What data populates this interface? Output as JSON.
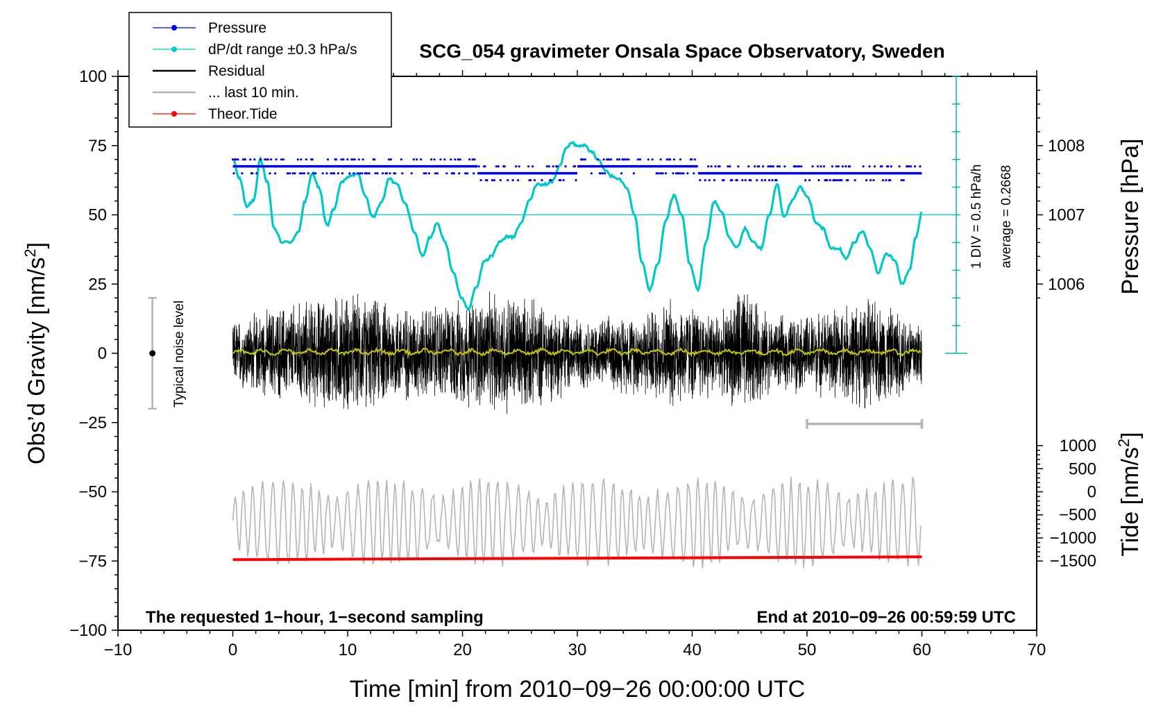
{
  "chart_data": {
    "type": "line",
    "title": "SCG_054 gravimeter Onsala Space Observatory, Sweden",
    "xlabel": "Time [min] from 2010−09−26 00:00:00 UTC",
    "ylabel": "Obs’d Gravity [nm/s²]",
    "ylabel_main": "Obs’d Gravity [nm/s",
    "ylabel_sup": "2",
    "ylabel_end": "]",
    "y2label": "Pressure [hPa]",
    "y3label": "Tide [nm/s²]",
    "y3label_main": "Tide [nm/s",
    "y3label_sup": "2",
    "y3label_end": "]",
    "xlim": [
      -10,
      70
    ],
    "ylim": [
      -100,
      100
    ],
    "x_ticks": [
      -10,
      0,
      10,
      20,
      30,
      40,
      50,
      60,
      70
    ],
    "x_tick_labels": [
      "−10",
      "0",
      "10",
      "20",
      "30",
      "40",
      "50",
      "60",
      "70"
    ],
    "y_ticks": [
      -100,
      -75,
      -50,
      -25,
      0,
      25,
      50,
      75,
      100
    ],
    "y_tick_labels": [
      "−100",
      "−75",
      "−50",
      "−25",
      "0",
      "25",
      "50",
      "75",
      "100"
    ],
    "pressure_axis": {
      "ticks": [
        1006,
        1007,
        1008
      ],
      "tick_labels": [
        "1006",
        "1007",
        "1008"
      ],
      "gravity_at_1007": 50,
      "gravity_per_hPa": 25
    },
    "tide_axis": {
      "ticks": [
        -1500,
        -1000,
        -500,
        0,
        500,
        1000
      ],
      "tick_labels": [
        "−1500",
        "−1000",
        "−500",
        "0",
        "500",
        "1000"
      ],
      "gravity_at_0": -50,
      "gravity_per_500": 8.333
    },
    "legend": [
      {
        "label": "Pressure",
        "color": "#0000ee",
        "marker": true
      },
      {
        "label": "dP/dt range ±0.3 hPa/s",
        "color": "#00c8c8",
        "marker": true
      },
      {
        "label": "Residual",
        "color": "#000000",
        "marker": false
      },
      {
        "label": "... last 10 min.",
        "color": "#b4b4b4",
        "marker": false
      },
      {
        "label": "Theor.Tide",
        "color": "#ff0000",
        "marker": true
      }
    ],
    "annotations": {
      "noise_level": "Typical noise level",
      "noise_range": [
        -20,
        20
      ],
      "noise_x": -7,
      "scale_div": "1 DIV = 0.5 hPa/h",
      "average": "average = 0.2668",
      "bottom_left": "The requested 1−hour, 1−second sampling",
      "bottom_right": "End at 2010−09−26 00:59:59 UTC",
      "last10_bar": {
        "x": [
          50,
          60
        ],
        "y": -25.5
      }
    },
    "series": [
      {
        "name": "dP/dt range ±0.3 hPa/s",
        "color": "#00c8c8",
        "x": [
          0,
          0.6,
          1.2,
          1.8,
          2.4,
          3.0,
          3.6,
          4.3,
          5.0,
          5.7,
          6.3,
          6.9,
          7.5,
          8.2,
          8.8,
          9.5,
          10.2,
          10.9,
          11.5,
          12.2,
          13.0,
          13.6,
          14.3,
          15.0,
          15.8,
          16.5,
          17.2,
          17.8,
          18.5,
          19.2,
          19.9,
          20.5,
          21.2,
          21.9,
          22.5,
          23.2,
          23.8,
          24.4,
          25.1,
          25.8,
          26.5,
          27.2,
          27.8,
          28.5,
          29.0,
          29.5,
          30.0,
          30.6,
          31.2,
          31.8,
          32.4,
          33.0,
          33.6,
          34.3,
          35.0,
          35.6,
          36.3,
          37.0,
          37.7,
          38.4,
          39.1,
          39.8,
          40.5,
          41.2,
          41.9,
          42.6,
          43.2,
          43.9,
          44.6,
          45.3,
          46.0,
          46.7,
          47.4,
          48.0,
          48.7,
          49.4,
          50.1,
          50.8,
          51.4,
          52.1,
          52.8,
          53.4,
          54.1,
          54.8,
          55.5,
          56.2,
          56.9,
          57.6,
          58.3,
          58.9,
          59.5,
          60.0
        ],
        "values": [
          70,
          63,
          53,
          55,
          70,
          62,
          45,
          40,
          40,
          44,
          55,
          65,
          60,
          46,
          52,
          62,
          64,
          65,
          57,
          49,
          55,
          63,
          61,
          54,
          44,
          35,
          42,
          47,
          40,
          29,
          20,
          16,
          24,
          33,
          35,
          40,
          42,
          42,
          47,
          55,
          61,
          61,
          62,
          68,
          74,
          76,
          75,
          75,
          73,
          70,
          66,
          64,
          63,
          60,
          50,
          33,
          23,
          32,
          48,
          57,
          50,
          32,
          23,
          40,
          55,
          51,
          42,
          38,
          45,
          40,
          38,
          50,
          61,
          49,
          55,
          60,
          56,
          47,
          45,
          38,
          38,
          34,
          40,
          44,
          38,
          29,
          36,
          34,
          25,
          30,
          42,
          51
        ]
      },
      {
        "name": "Theor.Tide",
        "color": "#ff0000",
        "x": [
          0,
          60
        ],
        "values": [
          -74.5,
          -73.5
        ]
      },
      {
        "name": "Pressure",
        "color": "#0000ee",
        "lines": [
          {
            "x": [
              0,
              21.3
            ],
            "values": [
              67.5,
              67.5
            ]
          },
          {
            "x": [
              21.3,
              30.0
            ],
            "values": [
              65,
              65
            ]
          },
          {
            "x": [
              30.0,
              40.5
            ],
            "values": [
              67.5,
              67.5
            ]
          },
          {
            "x": [
              40.5,
              60.0
            ],
            "values": [
              65,
              65
            ]
          }
        ]
      },
      {
        "name": "Residual",
        "color": "#000000",
        "x_range": [
          0,
          60
        ],
        "amplitude_envelope": [
          {
            "x": 0,
            "amp": 13
          },
          {
            "x": 4,
            "amp": 19
          },
          {
            "x": 10,
            "amp": 24
          },
          {
            "x": 16,
            "amp": 18
          },
          {
            "x": 21,
            "amp": 22
          },
          {
            "x": 24,
            "amp": 25
          },
          {
            "x": 31,
            "amp": 13
          },
          {
            "x": 36,
            "amp": 17
          },
          {
            "x": 38,
            "amp": 22
          },
          {
            "x": 43,
            "amp": 16
          },
          {
            "x": 44,
            "amp": 28
          },
          {
            "x": 47,
            "amp": 14
          },
          {
            "x": 51,
            "amp": 16
          },
          {
            "x": 55,
            "amp": 22
          },
          {
            "x": 60,
            "amp": 14
          }
        ]
      },
      {
        "name": "... last 10 min.",
        "color": "#b4b4b4",
        "x_range": [
          0,
          60
        ],
        "center": -61,
        "amplitude": 15
      },
      {
        "name": "Residual smoothed",
        "color": "#c8c800",
        "x_range": [
          0,
          60
        ],
        "center": 0.5,
        "amplitude": 1.2
      }
    ]
  }
}
